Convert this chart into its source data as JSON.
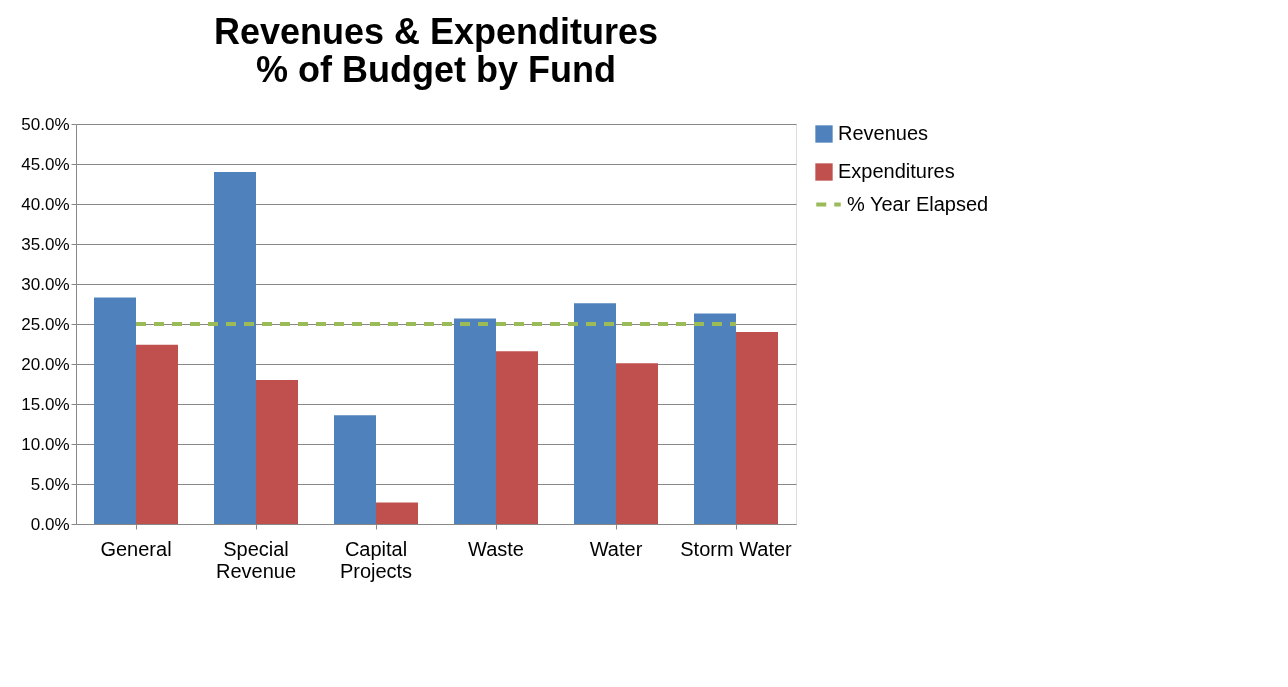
{
  "chart_data": {
    "type": "bar",
    "title": "Revenues & Expenditures\n% of Budget by Fund",
    "categories": [
      "General",
      "Special Revenue",
      "Capital Projects",
      "Waste",
      "Water",
      "Storm Water"
    ],
    "series": [
      {
        "name": "Revenues",
        "color": "#4f81bd",
        "values": [
          28.3,
          44.0,
          13.6,
          25.7,
          27.6,
          26.3
        ]
      },
      {
        "name": "Expenditures",
        "color": "#c0504d",
        "values": [
          22.4,
          18.0,
          2.7,
          21.6,
          20.1,
          24.0
        ]
      },
      {
        "name": "% Year Elapsed",
        "type": "line",
        "color": "#9bbb59",
        "values": [
          25,
          25,
          25,
          25,
          25,
          25
        ]
      }
    ],
    "ylim": [
      0,
      50
    ],
    "yticks": [
      {
        "value": 0,
        "label": "0.0%"
      },
      {
        "value": 5,
        "label": "5.0%"
      },
      {
        "value": 10,
        "label": "10.0%"
      },
      {
        "value": 15,
        "label": "15.0%"
      },
      {
        "value": 20,
        "label": "20.0%"
      },
      {
        "value": 25,
        "label": "25.0%"
      },
      {
        "value": 30,
        "label": "30.0%"
      },
      {
        "value": 35,
        "label": "35.0%"
      },
      {
        "value": 40,
        "label": "40.0%"
      },
      {
        "value": 45,
        "label": "45.0%"
      },
      {
        "value": 50,
        "label": "50.0%"
      }
    ],
    "grid": "y",
    "legend": "right",
    "line_style": "dashed"
  }
}
